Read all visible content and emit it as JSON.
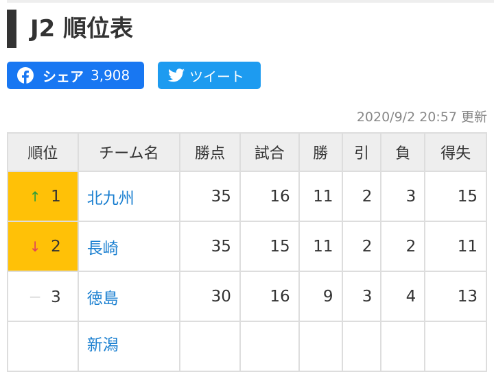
{
  "title": "J2 順位表",
  "share": {
    "facebook_label": "シェア",
    "facebook_count": "3,908",
    "twitter_label": "ツイート",
    "facebook_color": "#1877f2",
    "twitter_color": "#1d9bf0"
  },
  "updated": "2020/9/2 20:57 更新",
  "table": {
    "headers": [
      "順位",
      "チーム名",
      "勝点",
      "試合",
      "勝",
      "引",
      "負",
      "得失"
    ],
    "rows": [
      {
        "trend": "up",
        "trend_glyph": "↑",
        "rank": "1",
        "team": "北九州",
        "pts": "35",
        "played": "16",
        "w": "11",
        "d": "2",
        "l": "3",
        "gd": "15",
        "highlight": true
      },
      {
        "trend": "down",
        "trend_glyph": "↓",
        "rank": "2",
        "team": "長崎",
        "pts": "35",
        "played": "15",
        "w": "11",
        "d": "2",
        "l": "2",
        "gd": "11",
        "highlight": true
      },
      {
        "trend": "same",
        "trend_glyph": "－",
        "rank": "3",
        "team": "徳島",
        "pts": "30",
        "played": "16",
        "w": "9",
        "d": "3",
        "l": "4",
        "gd": "13",
        "highlight": false
      },
      {
        "team": "新潟"
      }
    ]
  }
}
